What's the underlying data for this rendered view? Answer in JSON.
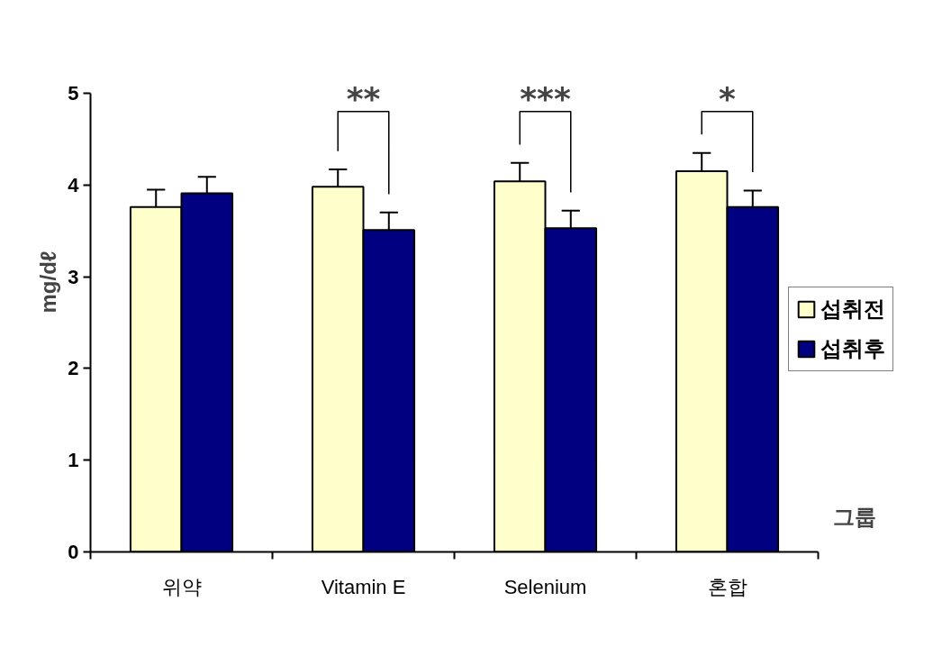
{
  "chart_data": {
    "type": "bar",
    "xlabel": "그룹",
    "ylabel": "mg/dℓ",
    "categories": [
      "위약",
      "Vitamin E",
      "Selenium",
      "혼합"
    ],
    "series": [
      {
        "name": "섭취전",
        "color": "#ffffcc",
        "values": [
          3.76,
          3.98,
          4.04,
          4.15
        ],
        "errors": [
          [
            3.76,
            3.95
          ],
          [
            3.98,
            4.17
          ],
          [
            4.04,
            4.24
          ],
          [
            4.15,
            4.35
          ]
        ]
      },
      {
        "name": "섭취후",
        "color": "#000080",
        "values": [
          3.91,
          3.51,
          3.53,
          3.76
        ],
        "errors": [
          [
            3.91,
            4.09
          ],
          [
            3.51,
            3.7
          ],
          [
            3.53,
            3.72
          ],
          [
            3.76,
            3.94
          ]
        ]
      }
    ],
    "ylim": [
      0,
      5
    ],
    "yticks": [
      0,
      1,
      2,
      3,
      4,
      5
    ],
    "grid": false,
    "legend": "right",
    "annotations": [
      "**",
      "***",
      "*"
    ]
  }
}
